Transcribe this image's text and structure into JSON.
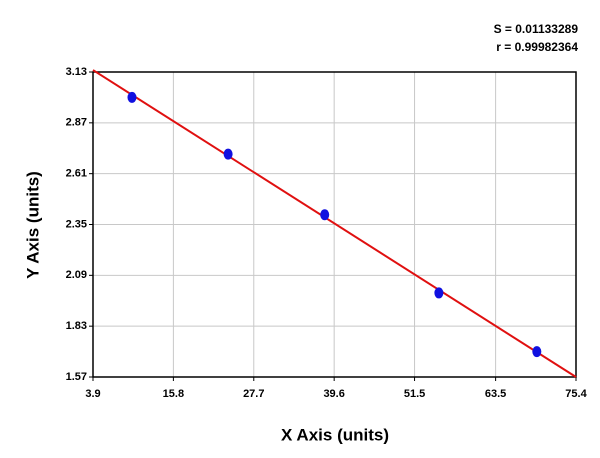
{
  "chart_data": {
    "type": "scatter",
    "annotations": [
      "S = 0.01133289",
      "r = 0.99982364"
    ],
    "x_label": "X Axis (units)",
    "y_label": "Y Axis (units)",
    "x": [
      9.67,
      23.9,
      38.2,
      55.1,
      69.6
    ],
    "values": [
      3.0,
      2.71,
      2.4,
      2.0,
      1.7
    ],
    "color": "#1010e0",
    "fit_line": {
      "x": [
        3.9,
        75.4
      ],
      "y": [
        3.14,
        1.57
      ],
      "color": "#e01010"
    },
    "xlim": [
      3.9,
      75.4
    ],
    "xticks": [
      3.9,
      15.8,
      27.7,
      39.6,
      51.5,
      63.5,
      75.4
    ],
    "ylim": [
      1.57,
      3.13
    ],
    "yticks": [
      1.57,
      1.83,
      2.09,
      2.35,
      2.61,
      2.87,
      3.13
    ],
    "grid": true
  }
}
